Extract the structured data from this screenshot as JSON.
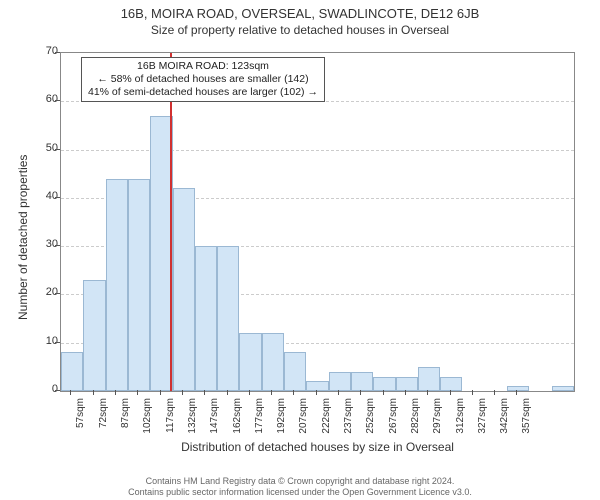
{
  "title": "16B, MOIRA ROAD, OVERSEAL, SWADLINCOTE, DE12 6JB",
  "subtitle": "Size of property relative to detached houses in Overseal",
  "y_axis_label": "Number of detached properties",
  "x_axis_label": "Distribution of detached houses by size in Overseal",
  "footer_line1": "Contains HM Land Registry data © Crown copyright and database right 2024.",
  "footer_line2": "Contains public sector information licensed under the Open Government Licence v3.0.",
  "annotation": {
    "line1": "16B MOIRA ROAD: 123sqm",
    "line2": "← 58% of detached houses are smaller (142)",
    "line3": "41% of semi-detached houses are larger (102) →"
  },
  "chart": {
    "type": "histogram",
    "ylim": [
      0,
      70
    ],
    "ytick_step": 10,
    "background_color": "#ffffff",
    "grid_color": "#cccccc",
    "bar_fill": "#d2e5f6",
    "bar_stroke": "#9bb8d3",
    "axis_color": "#888888",
    "ref_line_color": "#d03030",
    "ref_value_x": 123,
    "x_start": 50,
    "x_bin_width": 15,
    "x_tick_start": 57,
    "x_tick_step": 15,
    "x_tick_suffix": "sqm",
    "num_x_ticks": 21,
    "bars": [
      8,
      23,
      44,
      44,
      57,
      42,
      30,
      30,
      12,
      12,
      8,
      2,
      4,
      4,
      3,
      3,
      5,
      3,
      0,
      0,
      1,
      0,
      1
    ]
  },
  "style": {
    "title_fontsize": 13,
    "subtitle_fontsize": 12,
    "axis_label_fontsize": 12,
    "tick_fontsize": 11,
    "x_tick_fontsize": 10,
    "annotation_fontsize": 10.5,
    "footer_fontsize": 9,
    "font_family": "Arial, sans-serif"
  }
}
